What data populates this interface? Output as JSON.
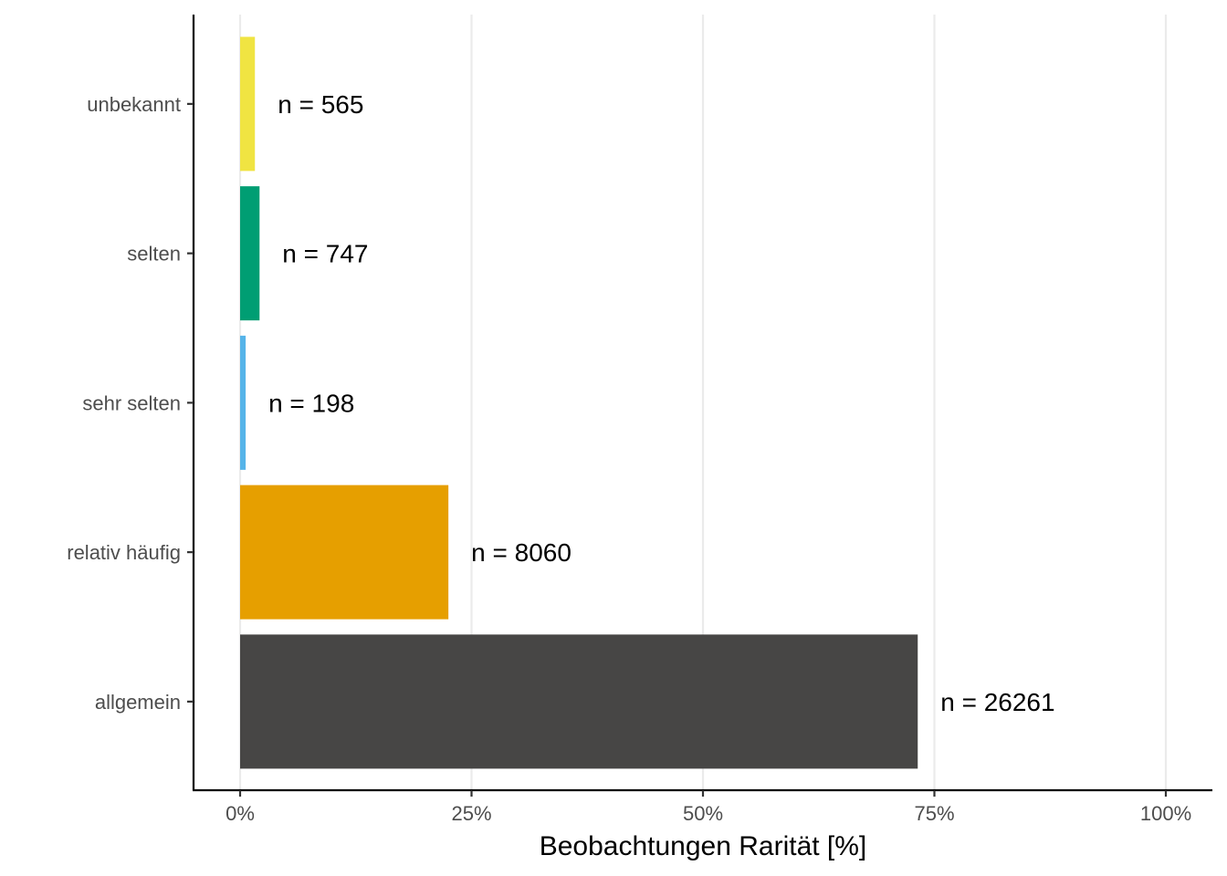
{
  "chart_data": {
    "type": "bar",
    "orientation": "horizontal",
    "categories": [
      "unbekannt",
      "selten",
      "sehr selten",
      "relativ häufig",
      "allgemein"
    ],
    "values": [
      1.6,
      2.1,
      0.6,
      22.5,
      73.2
    ],
    "value_unit": "%",
    "bar_labels": [
      "n = 565",
      "n = 747",
      "n = 198",
      "n = 8060",
      "n = 26261"
    ],
    "colors": [
      "#f0e442",
      "#009e73",
      "#56b4e9",
      "#e69f00",
      "#474645"
    ],
    "xlabel": "Beobachtungen Rarität [%]",
    "ylabel": "",
    "xlim": [
      0,
      100
    ],
    "xticks": [
      0,
      25,
      50,
      75,
      100
    ],
    "xtick_labels": [
      "0%",
      "25%",
      "50%",
      "75%",
      "100%"
    ],
    "grid": "vertical major",
    "legend": "none"
  }
}
